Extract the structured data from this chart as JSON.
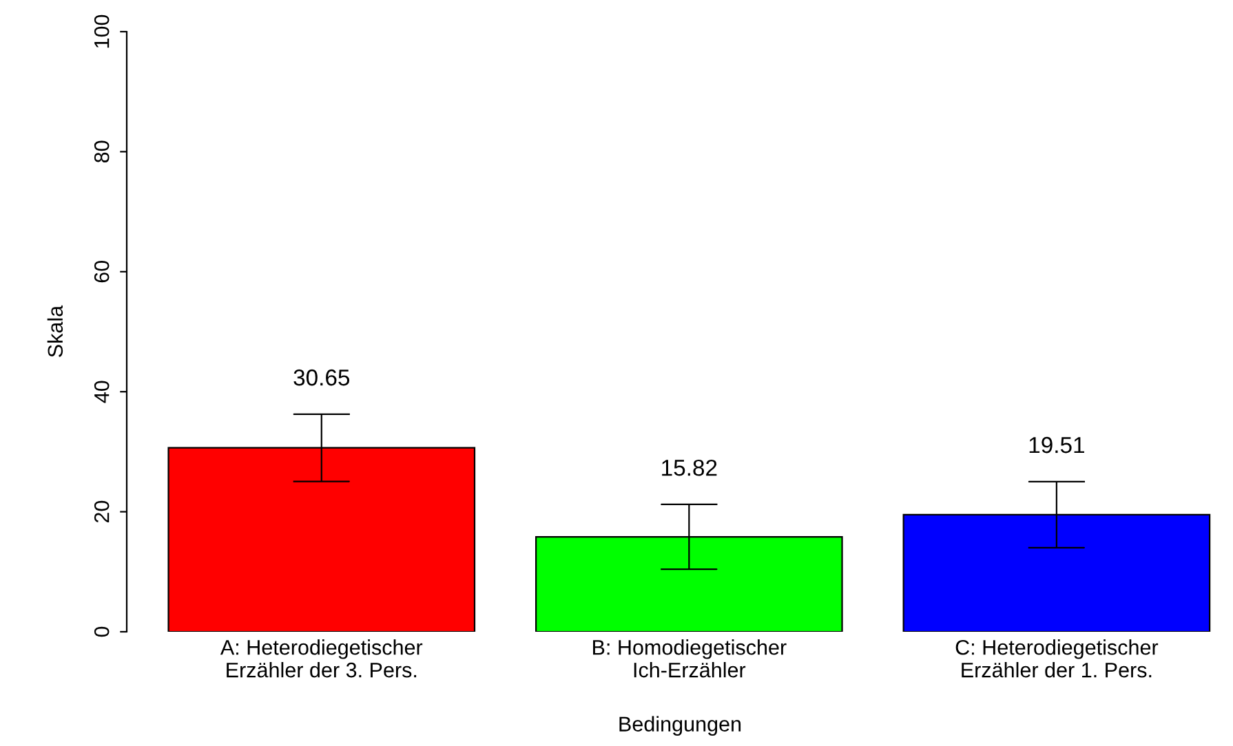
{
  "chart_data": {
    "type": "bar",
    "categories": [
      "A: Heterodiegetischer\nErzähler der 3. Pers.",
      "B: Homodiegetischer\nIch-Erzähler",
      "C: Heterodiegetischer\nErzähler der 1. Pers."
    ],
    "values": [
      30.65,
      15.82,
      19.51
    ],
    "colors": [
      "#ff0000",
      "#00ff00",
      "#0000ff"
    ],
    "errors": [
      5.6,
      5.4,
      5.5
    ],
    "data_labels": true,
    "xlabel": "Bedingungen",
    "ylabel": "Skala",
    "ylim": [
      0,
      100
    ],
    "yticks": [
      0,
      20,
      40,
      60,
      80,
      100
    ],
    "grid": false,
    "legend": false
  }
}
